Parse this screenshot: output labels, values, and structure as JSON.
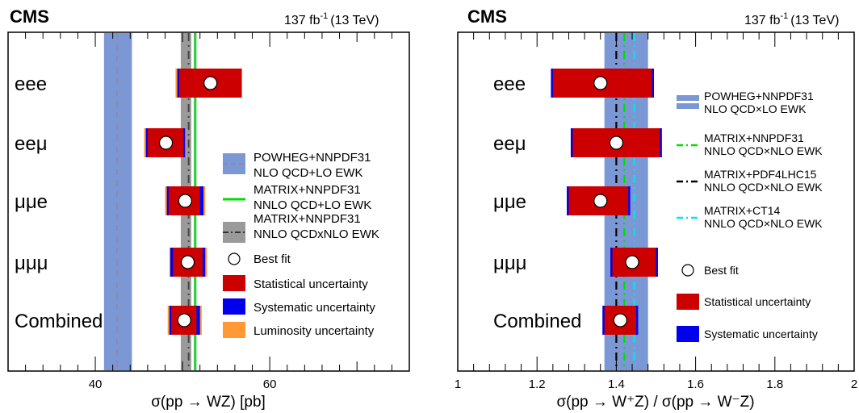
{
  "chart_data": [
    {
      "type": "forest-plot",
      "experiment": "CMS",
      "luminosity": "137 fb",
      "luminosity_exp": "-1",
      "energy": "(13 TeV)",
      "xlabel": "σ(pp → WZ) [pb]",
      "xlim": [
        30,
        76
      ],
      "major_ticks": [
        40,
        60
      ],
      "categories": [
        "eee",
        "eeμ",
        "μμe",
        "μμμ",
        "Combined"
      ],
      "best_fit": [
        53.2,
        48.1,
        50.3,
        50.6,
        50.2
      ],
      "stat_interval": [
        [
          49.6,
          56.8
        ],
        [
          46.0,
          50.1
        ],
        [
          48.4,
          52.0
        ],
        [
          48.9,
          52.3
        ],
        [
          48.7,
          51.6
        ]
      ],
      "syst_interval": [
        [
          49.4,
          56.6
        ],
        [
          45.8,
          50.3
        ],
        [
          48.2,
          52.4
        ],
        [
          48.6,
          52.6
        ],
        [
          48.5,
          52.0
        ]
      ],
      "lumi_interval": [
        [
          49.2,
          56.7
        ],
        [
          45.6,
          50.4
        ],
        [
          48.0,
          52.6
        ],
        [
          48.5,
          52.8
        ],
        [
          48.3,
          52.2
        ]
      ],
      "theory_bands": [
        {
          "central": 42.5,
          "low": 41.0,
          "high": 44.2,
          "color": "#7b98d4",
          "line": "#8a8ab0"
        },
        {
          "central": 51.4,
          "low": 51.3,
          "high": 51.6,
          "color": "#2ecc40",
          "line": "#00c800"
        },
        {
          "central": 50.7,
          "low": 49.8,
          "high": 51.0,
          "color": "#9a9a9a",
          "line": "#444444"
        }
      ],
      "legend": [
        {
          "label": "POWHEG+NNPDF31",
          "label2": "NLO QCD+LO EWK",
          "style": "band-dash",
          "color": "#7b98d4"
        },
        {
          "label": "MATRIX+NNPDF31",
          "label2": "NNLO QCD+LO EWK",
          "style": "line",
          "color": "#00dd00"
        },
        {
          "label": "MATRIX+NNPDF31",
          "label2": "NNLO QCDxNLO EWK",
          "style": "band-dashdot",
          "color": "#9a9a9a"
        },
        {
          "label": "Best fit",
          "style": "marker"
        },
        {
          "label": "Statistical uncertainty",
          "style": "box",
          "color": "#cc0000"
        },
        {
          "label": "Systematic uncertainty",
          "style": "box",
          "color": "#0000ee"
        },
        {
          "label": "Luminosity uncertainty",
          "style": "box",
          "color": "#ff9933"
        }
      ]
    },
    {
      "type": "forest-plot",
      "experiment": "CMS",
      "luminosity": "137 fb",
      "luminosity_exp": "-1",
      "energy": "(13 TeV)",
      "xlabel": "σ(pp → W⁺Z) / σ(pp → W⁻Z)",
      "xlim": [
        1.0,
        2.0
      ],
      "major_ticks": [
        1,
        1.2,
        1.4,
        1.6,
        1.8,
        2
      ],
      "tick_labels": [
        "1",
        "1.2",
        "1.4",
        "1.6",
        "1.8",
        "2"
      ],
      "categories": [
        "eee",
        "eeμ",
        "μμe",
        "μμμ",
        "Combined"
      ],
      "best_fit": [
        1.36,
        1.4,
        1.36,
        1.44,
        1.41
      ],
      "stat_interval": [
        [
          1.24,
          1.49
        ],
        [
          1.29,
          1.51
        ],
        [
          1.28,
          1.43
        ],
        [
          1.39,
          1.5
        ],
        [
          1.37,
          1.45
        ]
      ],
      "syst_interval": [
        [
          1.235,
          1.495
        ],
        [
          1.285,
          1.515
        ],
        [
          1.275,
          1.435
        ],
        [
          1.385,
          1.505
        ],
        [
          1.365,
          1.455
        ]
      ],
      "theory_bands": [
        {
          "central": 1.425,
          "low": 1.37,
          "high": 1.48,
          "color": "#7b98d4"
        }
      ],
      "theory_lines": [
        {
          "x": 1.42,
          "color": "#00dd00",
          "dash": "10,5,2,5"
        },
        {
          "x": 1.4,
          "color": "#000000",
          "dash": "10,5,2,5"
        },
        {
          "x": 1.445,
          "color": "#00e5ee",
          "dash": "10,5,2,5"
        }
      ],
      "legend": [
        {
          "label": "POWHEG+NNPDF31",
          "label2": "NLO QCD×LO EWK",
          "style": "band",
          "color": "#7b98d4"
        },
        {
          "label": "MATRIX+NNPDF31",
          "label2": "NNLO QCD×NLO EWK",
          "style": "dashline",
          "color": "#00dd00"
        },
        {
          "label": "MATRIX+PDF4LHC15",
          "label2": "NNLO QCD×NLO EWK",
          "style": "dashline",
          "color": "#000000"
        },
        {
          "label": "MATRIX+CT14",
          "label2": "NNLO QCD×NLO EWK",
          "style": "dashline",
          "color": "#00e5ee"
        },
        {
          "label": "Best fit",
          "style": "marker"
        },
        {
          "label": "Statistical uncertainty",
          "style": "box",
          "color": "#cc0000"
        },
        {
          "label": "Systematic uncertainty",
          "style": "box",
          "color": "#0000ee"
        }
      ]
    }
  ]
}
